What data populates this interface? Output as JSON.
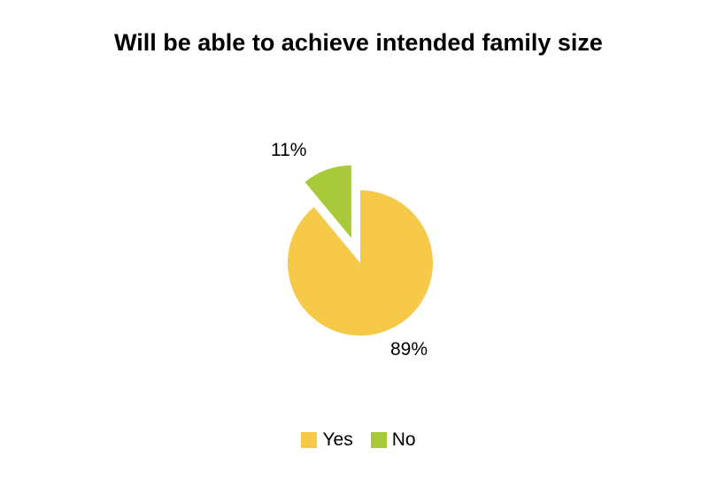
{
  "chart_data": {
    "type": "pie",
    "title": "Will be able to achieve intended family size",
    "categories": [
      "Yes",
      "No"
    ],
    "values": [
      89,
      11
    ],
    "data_labels": [
      "89%",
      "11%"
    ],
    "colors": [
      "#F7C948",
      "#A8C93A"
    ],
    "legend_position": "bottom",
    "exploded": [
      "No"
    ]
  }
}
